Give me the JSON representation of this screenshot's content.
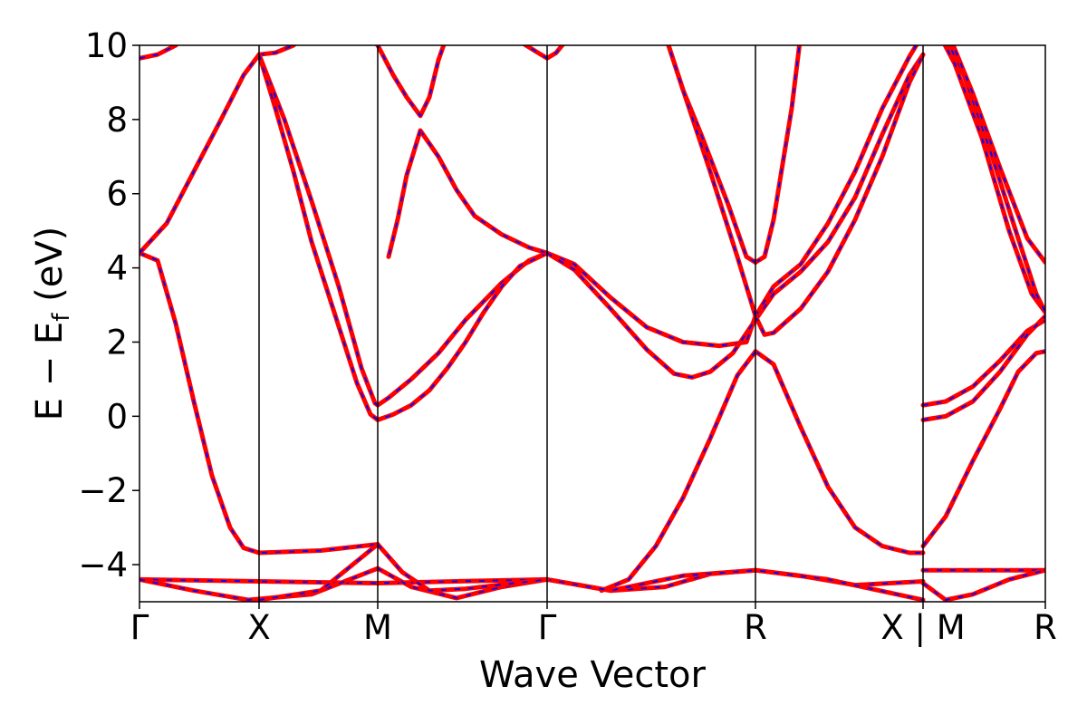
{
  "chart_data": {
    "type": "line",
    "title": "",
    "xlabel": "Wave Vector",
    "ylabel": "E − E",
    "ylabel_subscript": "f",
    "ylabel_unit": " (eV)",
    "ylim": [
      -5,
      10
    ],
    "yticks": [
      {
        "value": -4,
        "label": "−4"
      },
      {
        "value": -2,
        "label": "−2"
      },
      {
        "value": 0,
        "label": "0"
      },
      {
        "value": 2,
        "label": "2"
      },
      {
        "value": 4,
        "label": "4"
      },
      {
        "value": 6,
        "label": "6"
      },
      {
        "value": 8,
        "label": "8"
      },
      {
        "value": 10,
        "label": "10"
      }
    ],
    "xlim": [
      0,
      1
    ],
    "kpoints": [
      {
        "x": 0.0,
        "label": "Γ"
      },
      {
        "x": 0.132,
        "label": "X"
      },
      {
        "x": 0.263,
        "label": "M"
      },
      {
        "x": 0.45,
        "label": "Γ"
      },
      {
        "x": 0.68,
        "label": "R"
      },
      {
        "x": 0.865,
        "label": "X | M"
      },
      {
        "x": 1.0,
        "label": "R"
      }
    ],
    "grid": false,
    "line_colors": {
      "outer": "#ff0000",
      "inner": "#0000ff"
    },
    "line_style": "red solid band with blue dashed overlay",
    "series": [
      {
        "points": [
          [
            0.0,
            4.4
          ],
          [
            0.02,
            4.2
          ],
          [
            0.04,
            2.5
          ],
          [
            0.06,
            0.4
          ],
          [
            0.08,
            -1.6
          ],
          [
            0.1,
            -3.0
          ],
          [
            0.115,
            -3.55
          ],
          [
            0.132,
            -3.68
          ],
          [
            0.2,
            -3.62
          ],
          [
            0.263,
            -3.45
          ]
        ]
      },
      {
        "points": [
          [
            0.0,
            4.4
          ],
          [
            0.03,
            5.2
          ],
          [
            0.06,
            6.6
          ],
          [
            0.09,
            8.0
          ],
          [
            0.115,
            9.2
          ],
          [
            0.132,
            9.75
          ]
        ]
      },
      {
        "points": [
          [
            0.0,
            9.65
          ],
          [
            0.02,
            9.75
          ],
          [
            0.04,
            10.0
          ],
          [
            0.05,
            10.3
          ]
        ]
      },
      {
        "points": [
          [
            0.132,
            9.75
          ],
          [
            0.15,
            9.8
          ],
          [
            0.17,
            10.0
          ],
          [
            0.18,
            10.2
          ]
        ]
      },
      {
        "points": [
          [
            0.132,
            9.75
          ],
          [
            0.16,
            8.0
          ],
          [
            0.19,
            5.8
          ],
          [
            0.22,
            3.5
          ],
          [
            0.245,
            1.3
          ],
          [
            0.26,
            0.35
          ],
          [
            0.263,
            0.3
          ],
          [
            0.275,
            0.5
          ],
          [
            0.3,
            1.0
          ],
          [
            0.33,
            1.7
          ],
          [
            0.36,
            2.6
          ],
          [
            0.4,
            3.6
          ],
          [
            0.43,
            4.2
          ],
          [
            0.45,
            4.4
          ]
        ]
      },
      {
        "points": [
          [
            0.132,
            9.75
          ],
          [
            0.15,
            8.3
          ],
          [
            0.17,
            6.6
          ],
          [
            0.19,
            4.7
          ],
          [
            0.215,
            2.8
          ],
          [
            0.24,
            0.9
          ],
          [
            0.255,
            0.05
          ],
          [
            0.263,
            -0.1
          ],
          [
            0.28,
            0.05
          ],
          [
            0.3,
            0.3
          ],
          [
            0.32,
            0.7
          ],
          [
            0.34,
            1.3
          ],
          [
            0.36,
            2.0
          ],
          [
            0.38,
            2.8
          ],
          [
            0.4,
            3.5
          ],
          [
            0.42,
            4.05
          ],
          [
            0.45,
            4.4
          ]
        ]
      },
      {
        "points": [
          [
            0.25,
            10.3
          ],
          [
            0.263,
            10.0
          ],
          [
            0.28,
            9.2
          ],
          [
            0.295,
            8.6
          ],
          [
            0.31,
            8.1
          ],
          [
            0.32,
            8.6
          ],
          [
            0.33,
            9.6
          ],
          [
            0.34,
            10.3
          ]
        ]
      },
      {
        "points": [
          [
            0.31,
            7.7
          ],
          [
            0.33,
            7.0
          ],
          [
            0.35,
            6.1
          ],
          [
            0.37,
            5.4
          ],
          [
            0.4,
            4.9
          ],
          [
            0.43,
            4.55
          ],
          [
            0.45,
            4.4
          ]
        ]
      },
      {
        "points": [
          [
            0.31,
            7.7
          ],
          [
            0.295,
            6.5
          ],
          [
            0.285,
            5.3
          ],
          [
            0.275,
            4.3
          ]
        ]
      },
      {
        "points": [
          [
            0.42,
            10.1
          ],
          [
            0.44,
            9.8
          ],
          [
            0.45,
            9.65
          ],
          [
            0.46,
            9.8
          ],
          [
            0.47,
            10.1
          ]
        ]
      },
      {
        "points": [
          [
            0.45,
            4.4
          ],
          [
            0.48,
            4.1
          ],
          [
            0.52,
            3.2
          ],
          [
            0.56,
            2.4
          ],
          [
            0.6,
            2.0
          ],
          [
            0.64,
            1.9
          ],
          [
            0.67,
            2.0
          ],
          [
            0.68,
            2.7
          ]
        ]
      },
      {
        "points": [
          [
            0.45,
            4.4
          ],
          [
            0.48,
            3.95
          ],
          [
            0.52,
            2.9
          ],
          [
            0.56,
            1.8
          ],
          [
            0.59,
            1.15
          ],
          [
            0.61,
            1.05
          ],
          [
            0.63,
            1.2
          ],
          [
            0.655,
            1.7
          ],
          [
            0.68,
            2.6
          ]
        ]
      },
      {
        "points": [
          [
            0.68,
            2.6
          ],
          [
            0.7,
            3.3
          ],
          [
            0.73,
            3.9
          ],
          [
            0.76,
            4.7
          ],
          [
            0.79,
            5.9
          ],
          [
            0.82,
            7.6
          ],
          [
            0.85,
            9.2
          ],
          [
            0.865,
            9.75
          ]
        ]
      },
      {
        "points": [
          [
            0.68,
            2.7
          ],
          [
            0.7,
            3.5
          ],
          [
            0.73,
            4.1
          ],
          [
            0.76,
            5.2
          ],
          [
            0.79,
            6.6
          ],
          [
            0.82,
            8.3
          ],
          [
            0.85,
            9.7
          ],
          [
            0.86,
            10.1
          ]
        ]
      },
      {
        "points": [
          [
            0.68,
            2.7
          ],
          [
            0.69,
            2.2
          ],
          [
            0.7,
            2.25
          ],
          [
            0.73,
            2.9
          ],
          [
            0.76,
            3.9
          ],
          [
            0.79,
            5.3
          ],
          [
            0.82,
            7.0
          ],
          [
            0.85,
            9.0
          ],
          [
            0.865,
            9.75
          ]
        ]
      },
      {
        "points": [
          [
            0.68,
            1.75
          ],
          [
            0.7,
            1.4
          ],
          [
            0.73,
            -0.3
          ],
          [
            0.76,
            -1.9
          ],
          [
            0.79,
            -3.0
          ],
          [
            0.82,
            -3.5
          ],
          [
            0.85,
            -3.68
          ],
          [
            0.865,
            -3.68
          ]
        ]
      },
      {
        "points": [
          [
            0.68,
            1.75
          ],
          [
            0.66,
            1.1
          ],
          [
            0.63,
            -0.6
          ],
          [
            0.6,
            -2.2
          ],
          [
            0.57,
            -3.5
          ],
          [
            0.54,
            -4.4
          ],
          [
            0.51,
            -4.7
          ]
        ]
      },
      {
        "points": [
          [
            0.68,
            4.15
          ],
          [
            0.69,
            4.3
          ],
          [
            0.7,
            5.3
          ],
          [
            0.71,
            6.8
          ],
          [
            0.72,
            8.3
          ],
          [
            0.73,
            10.3
          ]
        ]
      },
      {
        "points": [
          [
            0.68,
            4.15
          ],
          [
            0.67,
            4.3
          ],
          [
            0.65,
            5.7
          ],
          [
            0.62,
            7.6
          ],
          [
            0.6,
            8.8
          ],
          [
            0.58,
            10.3
          ]
        ]
      },
      {
        "points": [
          [
            0.68,
            2.7
          ],
          [
            0.66,
            4.3
          ],
          [
            0.63,
            6.6
          ],
          [
            0.6,
            8.8
          ],
          [
            0.58,
            10.3
          ]
        ]
      },
      {
        "points": [
          [
            0.0,
            -4.4
          ],
          [
            0.132,
            -4.45
          ],
          [
            0.263,
            -4.5
          ],
          [
            0.35,
            -4.45
          ],
          [
            0.45,
            -4.4
          ],
          [
            0.52,
            -4.7
          ],
          [
            0.58,
            -4.6
          ],
          [
            0.63,
            -4.25
          ],
          [
            0.68,
            -4.15
          ],
          [
            0.73,
            -4.3
          ],
          [
            0.79,
            -4.55
          ],
          [
            0.865,
            -4.45
          ]
        ]
      },
      {
        "points": [
          [
            0.0,
            -4.4
          ],
          [
            0.06,
            -4.7
          ],
          [
            0.12,
            -4.95
          ],
          [
            0.19,
            -4.8
          ],
          [
            0.263,
            -4.1
          ],
          [
            0.3,
            -4.6
          ],
          [
            0.35,
            -4.9
          ],
          [
            0.4,
            -4.6
          ],
          [
            0.45,
            -4.4
          ],
          [
            0.52,
            -4.7
          ],
          [
            0.6,
            -4.3
          ],
          [
            0.68,
            -4.15
          ],
          [
            0.76,
            -4.4
          ],
          [
            0.865,
            -4.95
          ]
        ]
      },
      {
        "points": [
          [
            0.132,
            -4.95
          ],
          [
            0.2,
            -4.7
          ],
          [
            0.263,
            -3.45
          ],
          [
            0.29,
            -4.2
          ],
          [
            0.32,
            -4.7
          ],
          [
            0.36,
            -4.65
          ],
          [
            0.45,
            -4.4
          ]
        ]
      },
      {
        "points": [
          [
            0.865,
            0.3
          ],
          [
            0.89,
            0.4
          ],
          [
            0.92,
            0.8
          ],
          [
            0.95,
            1.5
          ],
          [
            0.98,
            2.3
          ],
          [
            1.0,
            2.6
          ]
        ]
      },
      {
        "points": [
          [
            0.865,
            -0.1
          ],
          [
            0.89,
            0.0
          ],
          [
            0.92,
            0.4
          ],
          [
            0.95,
            1.2
          ],
          [
            0.98,
            2.2
          ],
          [
            1.0,
            2.7
          ]
        ]
      },
      {
        "points": [
          [
            0.865,
            -3.5
          ],
          [
            0.89,
            -2.7
          ],
          [
            0.92,
            -1.2
          ],
          [
            0.95,
            0.2
          ],
          [
            0.97,
            1.2
          ],
          [
            0.99,
            1.7
          ],
          [
            1.0,
            1.75
          ]
        ]
      },
      {
        "points": [
          [
            0.865,
            -4.15
          ],
          [
            0.93,
            -4.15
          ],
          [
            1.0,
            -4.15
          ]
        ]
      },
      {
        "points": [
          [
            0.865,
            -4.5
          ],
          [
            0.89,
            -4.95
          ],
          [
            0.92,
            -4.8
          ],
          [
            0.96,
            -4.4
          ],
          [
            1.0,
            -4.15
          ]
        ]
      },
      {
        "points": [
          [
            0.885,
            10.2
          ],
          [
            0.9,
            9.5
          ],
          [
            0.93,
            7.5
          ],
          [
            0.96,
            5.0
          ],
          [
            0.985,
            3.3
          ],
          [
            1.0,
            2.8
          ]
        ]
      },
      {
        "points": [
          [
            0.89,
            10.2
          ],
          [
            0.91,
            9.2
          ],
          [
            0.94,
            7.1
          ],
          [
            0.97,
            4.8
          ],
          [
            0.99,
            3.3
          ],
          [
            1.0,
            2.8
          ]
        ]
      },
      {
        "points": [
          [
            0.895,
            10.2
          ],
          [
            0.92,
            8.7
          ],
          [
            0.95,
            6.7
          ],
          [
            0.98,
            4.8
          ],
          [
            1.0,
            4.15
          ]
        ]
      }
    ]
  }
}
